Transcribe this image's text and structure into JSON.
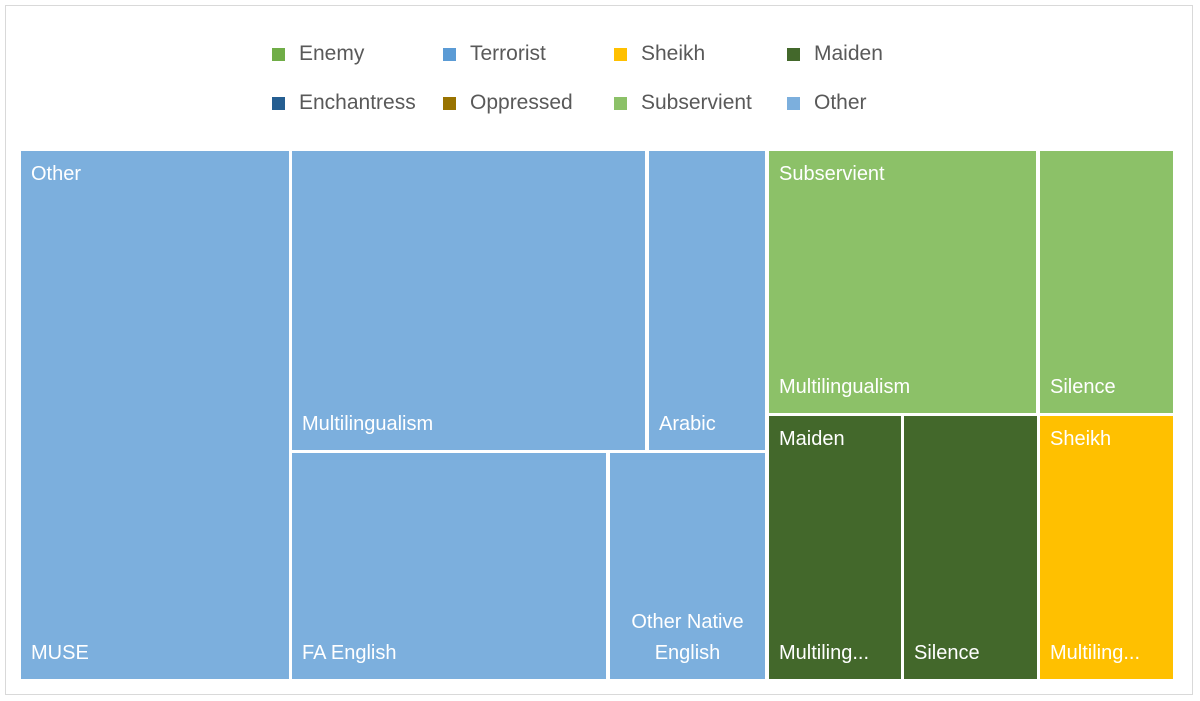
{
  "chart_data": {
    "type": "treemap",
    "legend": {
      "position": "top",
      "entries": [
        {
          "name": "Enemy",
          "color": "#70ad47"
        },
        {
          "name": "Terrorist",
          "color": "#5b9bd5"
        },
        {
          "name": "Sheikh",
          "color": "#ffc000"
        },
        {
          "name": "Maiden",
          "color": "#43682b"
        },
        {
          "name": "Enchantress",
          "color": "#255e91"
        },
        {
          "name": "Oppressed",
          "color": "#997300"
        },
        {
          "name": "Subservient",
          "color": "#8cc168"
        },
        {
          "name": "Other",
          "color": "#7cafdd"
        }
      ]
    },
    "groups": [
      {
        "name": "Other",
        "color": "#7cafdd",
        "children": [
          {
            "name": "MUSE",
            "value": 24
          },
          {
            "name": "Multilingualism",
            "value": 16
          },
          {
            "name": "FA English",
            "value": 15
          },
          {
            "name": "Arabic",
            "value": 5
          },
          {
            "name": "Other Native English",
            "value": 7
          }
        ]
      },
      {
        "name": "Subservient",
        "color": "#8cc168",
        "children": [
          {
            "name": "Multilingualism",
            "value": 11
          },
          {
            "name": "Silence",
            "value": 6
          }
        ]
      },
      {
        "name": "Maiden",
        "color": "#43682b",
        "children": [
          {
            "name": "Multiling...",
            "value": 4
          },
          {
            "name": "Silence",
            "value": 4
          }
        ]
      },
      {
        "name": "Sheikh",
        "color": "#ffc000",
        "children": [
          {
            "name": "Multiling...",
            "value": 4
          }
        ]
      }
    ]
  }
}
